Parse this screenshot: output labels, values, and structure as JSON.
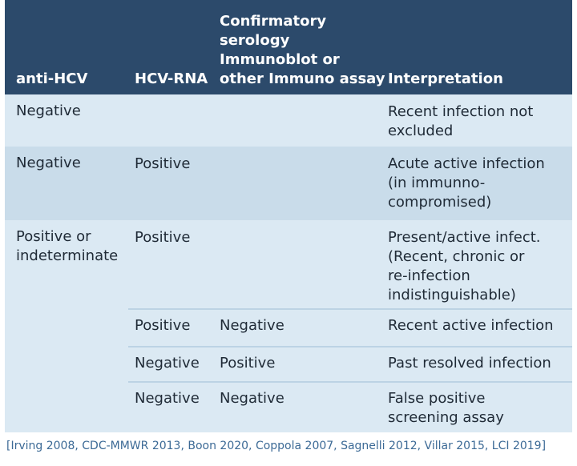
{
  "table": {
    "header": [
      "anti-HCV",
      "HCV-RNA",
      [
        "Confirmatory",
        "serology",
        "Immunoblot or",
        "other Immuno assay"
      ],
      "Interpretation"
    ],
    "groups": [
      {
        "anti_hcv": "Negative",
        "rows": [
          [
            null,
            null,
            [
              "Recent infection not",
              "excluded"
            ]
          ]
        ]
      },
      {
        "anti_hcv": "Negative",
        "rows": [
          [
            "Positive",
            null,
            [
              "Acute active infection",
              "(in immunno-",
              "compromised)"
            ]
          ]
        ]
      },
      {
        "anti_hcv": [
          "Positive or",
          "indeterminate"
        ],
        "rows": [
          [
            "Positive",
            null,
            [
              "Present/active infect.",
              "(Recent, chronic or",
              "re-infection",
              "indistinguishable)"
            ]
          ],
          [
            "Positive",
            "Negative",
            "Recent active infection"
          ],
          [
            "Negative",
            "Positive",
            "Past resolved infection"
          ],
          [
            "Negative",
            "Negative",
            [
              "False positive",
              "screening assay"
            ]
          ]
        ]
      }
    ]
  },
  "footnote": "[Irving 2008, CDC-MMWR 2013, Boon 2020, Coppola 2007, Sagnelli 2012, Villar 2015, LCI 2019]"
}
